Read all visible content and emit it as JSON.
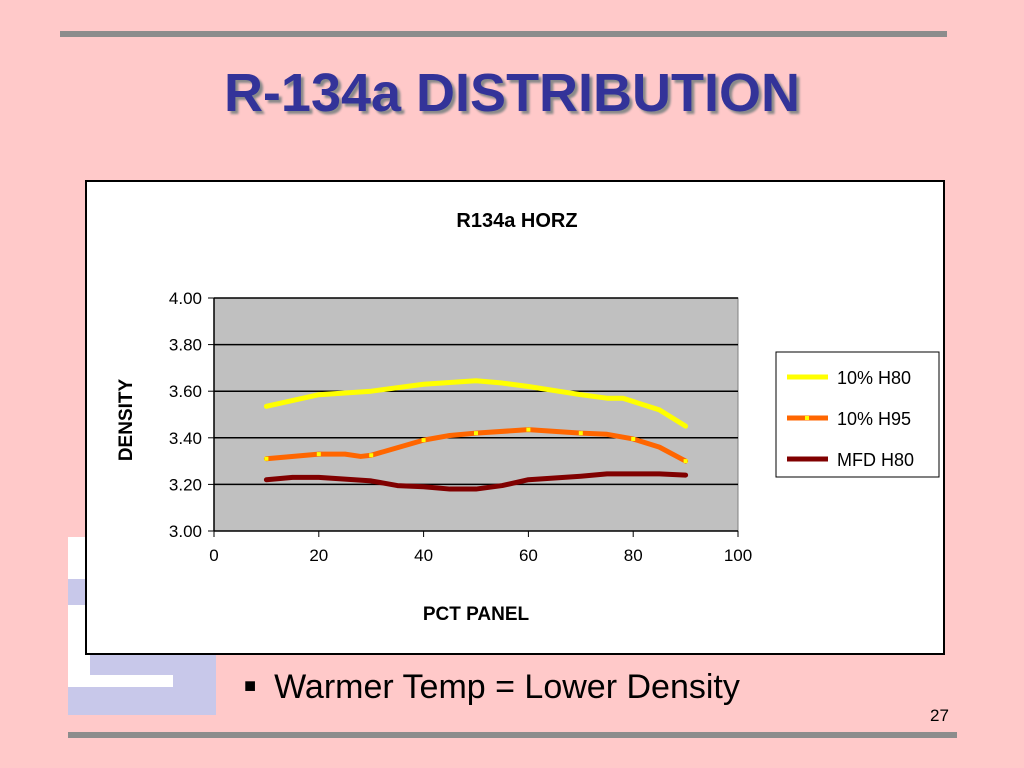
{
  "slide": {
    "title": "R-134a DISTRIBUTION",
    "bullet": "Warmer Temp = Lower Density",
    "page_number": "27"
  },
  "colors": {
    "background": "#ffc9c9",
    "title": "#333399",
    "plot_area": "#c0c0c0"
  },
  "chart_data": {
    "type": "line",
    "title": "R134a HORZ",
    "xlabel": "PCT PANEL",
    "ylabel": "DENSITY",
    "xlim": [
      0,
      100
    ],
    "ylim": [
      3.0,
      4.0
    ],
    "x_ticks": [
      "0",
      "20",
      "40",
      "60",
      "80",
      "100"
    ],
    "y_ticks": [
      "3.00",
      "3.20",
      "3.40",
      "3.60",
      "3.80",
      "4.00"
    ],
    "grid": "horizontal",
    "legend_position": "right",
    "series": [
      {
        "name": "10% H80",
        "color": "#ffff00",
        "markers": false,
        "x": [
          10,
          20,
          30,
          40,
          50,
          55,
          60,
          70,
          75,
          78,
          85,
          90
        ],
        "y": [
          3.535,
          3.585,
          3.6,
          3.63,
          3.645,
          3.635,
          3.62,
          3.585,
          3.57,
          3.57,
          3.52,
          3.45
        ]
      },
      {
        "name": "10% H95",
        "color": "#ff6600",
        "markers": true,
        "marker_color": "#ffff00",
        "x": [
          10,
          20,
          25,
          28,
          30,
          40,
          45,
          50,
          60,
          70,
          75,
          80,
          85,
          90
        ],
        "y": [
          3.31,
          3.33,
          3.33,
          3.32,
          3.325,
          3.39,
          3.41,
          3.42,
          3.435,
          3.42,
          3.415,
          3.395,
          3.36,
          3.3
        ]
      },
      {
        "name": "MFD H80",
        "color": "#800000",
        "markers": false,
        "x": [
          10,
          15,
          20,
          30,
          35,
          40,
          45,
          50,
          55,
          58,
          60,
          70,
          75,
          80,
          85,
          90
        ],
        "y": [
          3.22,
          3.23,
          3.23,
          3.215,
          3.195,
          3.19,
          3.18,
          3.18,
          3.195,
          3.21,
          3.22,
          3.235,
          3.245,
          3.245,
          3.245,
          3.24
        ]
      }
    ]
  }
}
